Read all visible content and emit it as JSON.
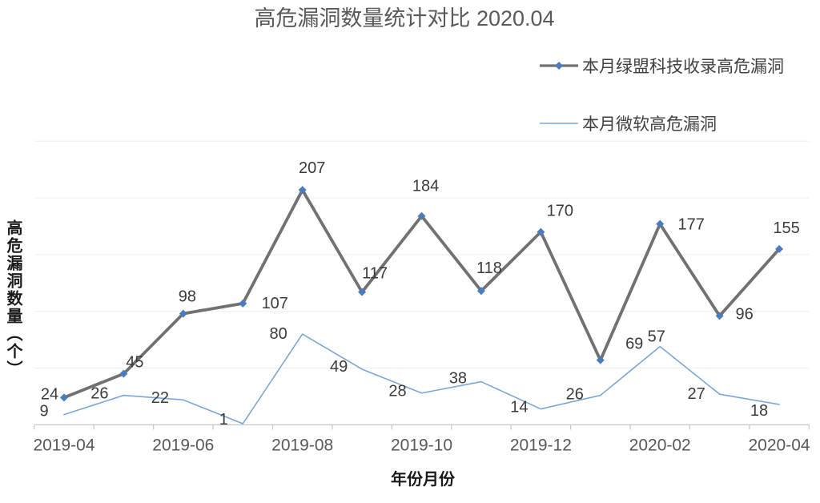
{
  "title": "高危漏洞数量统计对比 2020.04",
  "legend": [
    {
      "label": "本月绿盟科技收录高危漏洞",
      "sample": "gray-line-with-blue-diamond"
    },
    {
      "label": "本月微软高危漏洞",
      "sample": "light-blue-line"
    }
  ],
  "colors": {
    "title_text": "#595959",
    "tick_label": "#595959",
    "data_label": "#3b3b3b",
    "legend_text": "#404040",
    "grid": "#ededed",
    "axis": "#c6c6c6",
    "series1_line": "#717171",
    "series1_marker": "#4b7cbe",
    "series2_line": "#7ca6d8",
    "background": "#ffffff"
  },
  "chart_data": {
    "type": "line",
    "title": "高危漏洞数量统计对比 2020.04",
    "xlabel": "年份月份",
    "ylabel": "高危漏洞数量（个）",
    "x": [
      "2019-04",
      "2019-05",
      "2019-06",
      "2019-07",
      "2019-08",
      "2019-09",
      "2019-10",
      "2019-11",
      "2019-12",
      "2020-01",
      "2020-02",
      "2020-03",
      "2020-04"
    ],
    "x_tick_shown": [
      "2019-04",
      "2019-06",
      "2019-08",
      "2019-10",
      "2019-12",
      "2020-02",
      "2020-04"
    ],
    "series": [
      {
        "name": "本月绿盟科技收录高危漏洞",
        "marker": "diamond",
        "values": [
          24,
          45,
          98,
          107,
          207,
          117,
          184,
          118,
          170,
          57,
          177,
          96,
          155
        ]
      },
      {
        "name": "本月微软高危漏洞",
        "marker": "none",
        "values": [
          9,
          26,
          22,
          1,
          80,
          49,
          28,
          38,
          14,
          26,
          69,
          27,
          18
        ]
      }
    ],
    "ylim": [
      0,
      250
    ],
    "grid": true,
    "gridline_step": 50,
    "y_axis_labels_shown": false,
    "data_labels_shown": true,
    "legend_position": "top-right"
  }
}
